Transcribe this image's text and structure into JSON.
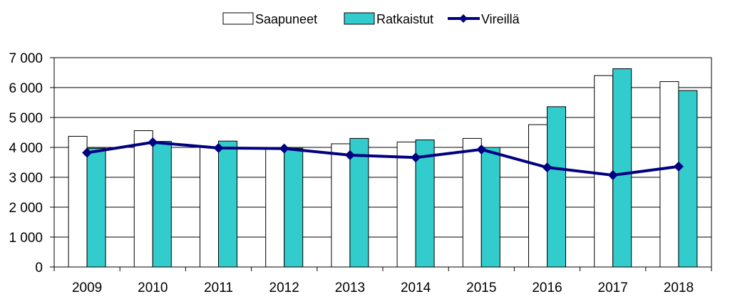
{
  "chart_data": {
    "type": "bar",
    "categories": [
      "2009",
      "2010",
      "2011",
      "2012",
      "2013",
      "2014",
      "2015",
      "2016",
      "2017",
      "2018"
    ],
    "series": [
      {
        "name": "Saapuneet",
        "kind": "bar",
        "color": "#ffffff",
        "values": [
          4370,
          4560,
          4000,
          4000,
          4120,
          4180,
          4300,
          4760,
          6400,
          6200
        ]
      },
      {
        "name": "Ratkaistut",
        "kind": "bar",
        "color": "#33cccc",
        "values": [
          3970,
          4200,
          4210,
          3970,
          4300,
          4250,
          4000,
          5360,
          6630,
          5900
        ]
      },
      {
        "name": "Vireillä",
        "kind": "line",
        "color": "#000080",
        "marker": "diamond",
        "values": [
          3820,
          4170,
          3980,
          3960,
          3740,
          3660,
          3930,
          3330,
          3070,
          3360
        ]
      }
    ],
    "yticks": [
      "0",
      "1 000",
      "2 000",
      "3 000",
      "4 000",
      "5 000",
      "6 000",
      "7 000"
    ],
    "ylim": [
      0,
      7000
    ],
    "title": "",
    "xlabel": "",
    "ylabel": "",
    "legend_position": "top-center",
    "grid": "horizontal",
    "colors": {
      "grid": "#000000",
      "bar_stroke": "#000000"
    }
  }
}
